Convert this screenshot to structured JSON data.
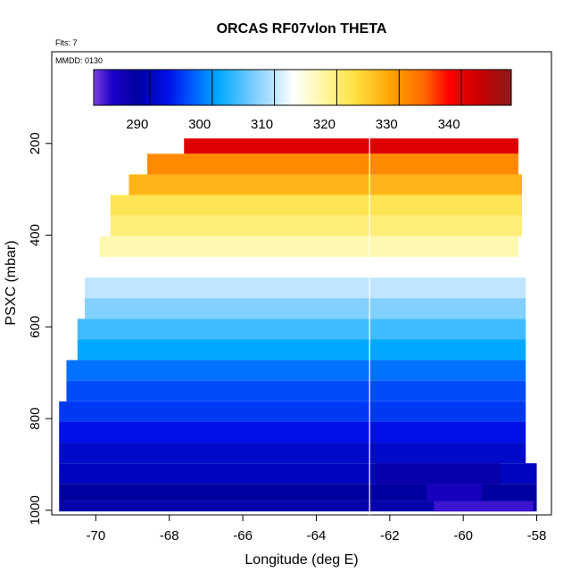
{
  "chart_data": {
    "type": "heatmap",
    "title": "ORCAS RF07vlon THETA",
    "subtitle": "Flts: 7",
    "panel_label": "MMDD: 0130",
    "xlabel": "Longitude (deg E)",
    "ylabel": "PSXC (mbar)",
    "xlim": [
      -71.2,
      -57.6
    ],
    "ylim": [
      1010,
      0
    ],
    "y_reversed": true,
    "grid": false,
    "x_ticks": [
      -70,
      -68,
      -66,
      -64,
      -62,
      -60,
      -58
    ],
    "x_tick_labels": [
      "-70",
      "-68",
      "-66",
      "-64",
      "-62",
      "-60",
      "-58"
    ],
    "y_ticks": [
      200,
      400,
      600,
      800,
      1000
    ],
    "y_tick_labels": [
      "200",
      "400",
      "600",
      "800",
      "1000"
    ],
    "colorbar": {
      "min": 281,
      "max": 348,
      "ticks": [
        290,
        300,
        310,
        320,
        330,
        340
      ],
      "tick_labels": [
        "290",
        "300",
        "310",
        "320",
        "330",
        "340"
      ],
      "stops": [
        {
          "v": 281,
          "c": "#7b3fe0"
        },
        {
          "v": 284,
          "c": "#1d00c8"
        },
        {
          "v": 288,
          "c": "#0000a0"
        },
        {
          "v": 293,
          "c": "#0010e8"
        },
        {
          "v": 297,
          "c": "#0060ff"
        },
        {
          "v": 301,
          "c": "#00a8ff"
        },
        {
          "v": 306,
          "c": "#6cc8ff"
        },
        {
          "v": 310,
          "c": "#bfe6ff"
        },
        {
          "v": 313,
          "c": "#ffffff"
        },
        {
          "v": 318,
          "c": "#fff6a0"
        },
        {
          "v": 323,
          "c": "#ffe040"
        },
        {
          "v": 329,
          "c": "#ffa000"
        },
        {
          "v": 334,
          "c": "#ff6a00"
        },
        {
          "v": 338,
          "c": "#ff0000"
        },
        {
          "v": 343,
          "c": "#c80000"
        },
        {
          "v": 348,
          "c": "#8b1a1a"
        }
      ]
    },
    "rows": [
      {
        "p": 200,
        "x_min": -67.6,
        "x_max": -58.5,
        "theta": 341
      },
      {
        "p": 245,
        "x_min": -68.6,
        "x_max": -58.5,
        "theta": 331
      },
      {
        "p": 290,
        "x_min": -69.1,
        "x_max": -58.4,
        "theta": 327
      },
      {
        "p": 335,
        "x_min": -69.6,
        "x_max": -58.4,
        "theta": 322
      },
      {
        "p": 380,
        "x_min": -69.6,
        "x_max": -58.4,
        "theta": 320
      },
      {
        "p": 425,
        "x_min": -69.9,
        "x_max": -58.5,
        "theta": 317
      },
      {
        "p": 470,
        "x_min": -70.1,
        "x_max": -58.4,
        "theta": 313
      },
      {
        "p": 515,
        "x_min": -70.3,
        "x_max": -58.3,
        "theta": 310
      },
      {
        "p": 560,
        "x_min": -70.3,
        "x_max": -58.3,
        "theta": 307
      },
      {
        "p": 605,
        "x_min": -70.5,
        "x_max": -58.3,
        "theta": 304
      },
      {
        "p": 650,
        "x_min": -70.5,
        "x_max": -58.3,
        "theta": 301
      },
      {
        "p": 695,
        "x_min": -70.8,
        "x_max": -58.3,
        "theta": 298
      },
      {
        "p": 740,
        "x_min": -70.8,
        "x_max": -58.3,
        "theta": 296
      },
      {
        "p": 785,
        "x_min": -71.0,
        "x_max": -58.3,
        "theta": 295
      },
      {
        "p": 830,
        "x_min": -71.0,
        "x_max": -58.3,
        "theta": 293
      },
      {
        "p": 875,
        "x_min": -71.0,
        "x_max": -58.3,
        "theta": 291
      },
      {
        "p": 920,
        "x_min": -71.0,
        "x_max": -58.0,
        "theta": 290
      },
      {
        "p": 965,
        "x_min": -71.0,
        "x_max": -58.0,
        "theta": 288
      },
      {
        "p": 995,
        "x_min": -71.0,
        "x_max": -58.0,
        "theta": 287
      }
    ],
    "highlight_cells": [
      {
        "p": 995,
        "x_min": -60.8,
        "x_max": -58.1,
        "theta": 283
      },
      {
        "p": 965,
        "x_min": -61.0,
        "x_max": -59.5,
        "theta": 285
      },
      {
        "p": 920,
        "x_min": -62.4,
        "x_max": -59.0,
        "theta": 287
      }
    ],
    "flight_track_x": -62.55
  }
}
